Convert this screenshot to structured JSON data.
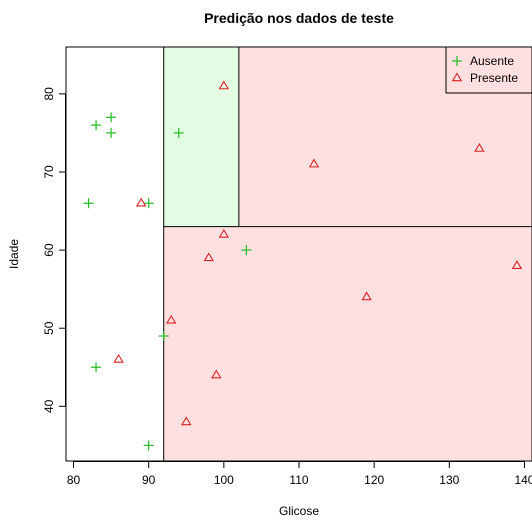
{
  "chart_data": {
    "type": "scatter",
    "title": "Predição nos dados de teste",
    "xlabel": "Glicose",
    "ylabel": "Idade",
    "xlim": [
      79,
      141
    ],
    "ylim": [
      33,
      86
    ],
    "xticks": [
      80,
      90,
      100,
      110,
      120,
      130,
      140
    ],
    "yticks": [
      40,
      50,
      60,
      70,
      80
    ],
    "grid": false,
    "legend_position": "top-right",
    "regions": [
      {
        "x": [
          92,
          102
        ],
        "y": [
          63,
          86
        ],
        "class": "Ausente",
        "color": "#e2fbe2"
      },
      {
        "x": [
          102,
          141
        ],
        "y": [
          63,
          86
        ],
        "class": "Presente",
        "color": "#ffe0e0"
      },
      {
        "x": [
          92,
          141
        ],
        "y": [
          33,
          63
        ],
        "class": "Presente",
        "color": "#ffe0e0"
      }
    ],
    "splits": [
      {
        "orientation": "vertical",
        "x": 92,
        "y": [
          33,
          86
        ]
      },
      {
        "orientation": "horizontal",
        "y": 63,
        "x": [
          92,
          141
        ]
      },
      {
        "orientation": "vertical",
        "x": 102,
        "y": [
          63,
          86
        ]
      }
    ],
    "series": [
      {
        "name": "Ausente",
        "marker": "plus",
        "color": "#22bb22",
        "points": [
          [
            83,
            76
          ],
          [
            85,
            77
          ],
          [
            85,
            75
          ],
          [
            94,
            75
          ],
          [
            82,
            66
          ],
          [
            90,
            66
          ],
          [
            103,
            60
          ],
          [
            92,
            49
          ],
          [
            83,
            45
          ],
          [
            90,
            35
          ]
        ]
      },
      {
        "name": "Presente",
        "marker": "triangle",
        "color": "#dd2222",
        "points": [
          [
            100,
            81
          ],
          [
            134,
            73
          ],
          [
            112,
            71
          ],
          [
            89,
            66
          ],
          [
            100,
            62
          ],
          [
            98,
            59
          ],
          [
            139,
            58
          ],
          [
            119,
            54
          ],
          [
            93,
            51
          ],
          [
            86,
            46
          ],
          [
            99,
            44
          ],
          [
            95,
            38
          ]
        ]
      }
    ]
  }
}
